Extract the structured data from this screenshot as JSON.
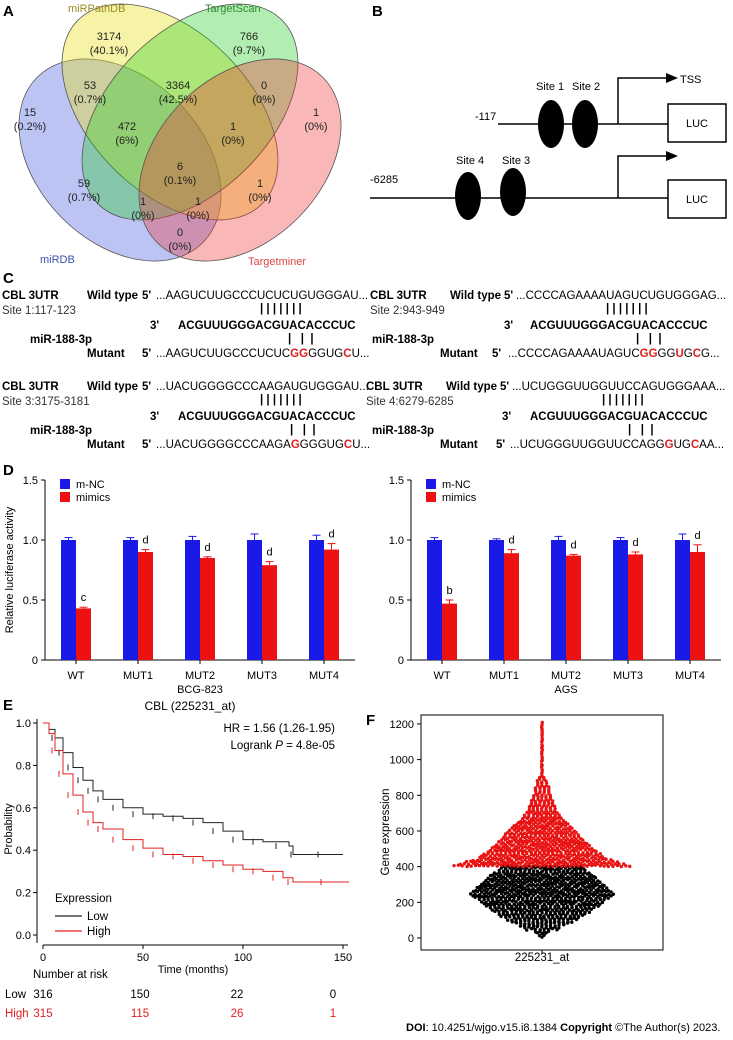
{
  "panels": {
    "A": {
      "letter": "A",
      "sets": {
        "mirpathdb": {
          "name": "miRPathDB",
          "color": "#9b8d22"
        },
        "targetscan": {
          "name": "TargetScan",
          "color": "#2e8b2e"
        },
        "mirdb": {
          "name": "miRDB",
          "color": "#3a4fb0"
        },
        "targetminer": {
          "name": "Targetminer",
          "color": "#d94545"
        }
      },
      "regions": [
        {
          "id": "p_only",
          "count": "3174",
          "pct": "(40.1%)"
        },
        {
          "id": "t_only",
          "count": "766",
          "pct": "(9.7%)"
        },
        {
          "id": "d_only",
          "count": "15",
          "pct": "(0.2%)"
        },
        {
          "id": "m_only",
          "count": "1",
          "pct": "(0%)"
        },
        {
          "id": "dp",
          "count": "53",
          "pct": "(0.7%)"
        },
        {
          "id": "pt",
          "count": "3364",
          "pct": "(42.5%)"
        },
        {
          "id": "tm",
          "count": "0",
          "pct": "(0%)"
        },
        {
          "id": "dpt",
          "count": "472",
          "pct": "(6%)"
        },
        {
          "id": "ptm",
          "count": "1",
          "pct": "(0%)"
        },
        {
          "id": "dptm",
          "count": "6",
          "pct": "(0.1%)"
        },
        {
          "id": "dt",
          "count": "59",
          "pct": "(0.7%)"
        },
        {
          "id": "pm",
          "count": "1",
          "pct": "(0%)"
        },
        {
          "id": "dtm",
          "count": "1",
          "pct": "(0%)"
        },
        {
          "id": "dpm",
          "count": "1",
          "pct": "(0%)"
        },
        {
          "id": "dm",
          "count": "0",
          "pct": "(0%)"
        }
      ]
    },
    "B": {
      "letter": "B",
      "tss": "TSS",
      "pos1": "-117",
      "pos2": "-6285",
      "site1": "Site 1",
      "site2": "Site 2",
      "site3": "Site 3",
      "site4": "Site 4",
      "luc": "LUC"
    },
    "C": {
      "letter": "C",
      "gene": "CBL 3UTR",
      "wild": "Wild type",
      "mirna": "miR-188-3p",
      "mutant": "Mutant",
      "p5": "5'",
      "p3": "3'",
      "blocks": [
        {
          "site": "Site 1:117-123",
          "wt": "...AAGUCUUGCCCUCUCUGUGGGAU...",
          "bars": "| | | | | | |",
          "mir": "ACGUUUGGGACGUACACCCUC",
          "mut_pre": "...AAGUCUUGCCCUCUC",
          "mut_seg": [
            [
              "G",
              "r"
            ],
            [
              "G",
              "r"
            ],
            [
              "G",
              "k"
            ],
            [
              "G",
              "k"
            ],
            [
              "U",
              "k"
            ],
            [
              "G",
              "k"
            ],
            [
              "C",
              "r"
            ],
            [
              "U",
              "k"
            ]
          ],
          "mut_post": "...",
          "mut_bars": "|   |  |"
        },
        {
          "site": "Site 2:943-949",
          "wt": "...CCCCAGAAAAUAGUCUGUGGGAG...",
          "bars": "| | | | | | |",
          "mir": "ACGUUUGGGACGUACACCCUC",
          "mut_pre": "...CCCCAGAAAAUAGUC",
          "mut_seg": [
            [
              "G",
              "r"
            ],
            [
              "G",
              "r"
            ],
            [
              "G",
              "k"
            ],
            [
              "G",
              "k"
            ],
            [
              "U",
              "r"
            ],
            [
              "G",
              "k"
            ],
            [
              "C",
              "r"
            ],
            [
              "G",
              "k"
            ]
          ],
          "mut_post": "...",
          "mut_bars": "|   |  |"
        },
        {
          "site": "Site 3:3175-3181",
          "wt": "...UACUGGGGCCCAAGAUGUGGGAU...",
          "bars": "| | | | | | |",
          "mir": "ACGUUUGGGACGUACACCCUC",
          "mut_pre": "...UACUGGGGCCCAAGA",
          "mut_seg": [
            [
              "G",
              "r"
            ],
            [
              "G",
              "k"
            ],
            [
              "G",
              "k"
            ],
            [
              "G",
              "k"
            ],
            [
              "U",
              "k"
            ],
            [
              "G",
              "k"
            ],
            [
              "C",
              "r"
            ],
            [
              "U",
              "k"
            ]
          ],
          "mut_post": "...",
          "mut_bars": "|   |  |"
        },
        {
          "site": "Site 4:6279-6285",
          "wt": "...UCUGGGUUGGUUCCAGUGGGAAA...",
          "bars": "| | | | | | |",
          "mir": "ACGUUUGGGACGUACACCCUC",
          "mut_pre": "...UCUGGGUUGGUUCCAG",
          "mut_seg": [
            [
              "G",
              "k"
            ],
            [
              "G",
              "r"
            ],
            [
              "U",
              "k"
            ],
            [
              "G",
              "k"
            ],
            [
              "C",
              "r"
            ],
            [
              "A",
              "k"
            ],
            [
              "A",
              "k"
            ]
          ],
          "mut_post": "...",
          "mut_bars": "|   |  |"
        }
      ]
    },
    "D": {
      "letter": "D",
      "ylabel": "Relative luciferase activity",
      "legend": {
        "nc": "m-NC",
        "mimics": "mimics"
      },
      "colors": {
        "nc": "#1a1ae6",
        "mimics": "#ee1111"
      }
    },
    "E": {
      "letter": "E",
      "title": "CBL (225231_at)",
      "hr": "HR = 1.56 (1.26-1.95)",
      "logrank_prefix": "Logrank",
      "logrank_p": "P",
      "logrank_value": "= 4.8e-05",
      "legend_title": "Expression",
      "low": "Low",
      "high": "High",
      "nar_title": "Number at risk",
      "risk_low": [
        "316",
        "150",
        "22",
        "0"
      ],
      "risk_high": [
        "315",
        "115",
        "26",
        "1"
      ],
      "colors": {
        "low": "#222222",
        "high": "#e02020"
      }
    },
    "F": {
      "letter": "F",
      "ylabel": "Gene expression",
      "xlabel": "225231_at",
      "yticks": [
        "0",
        "200",
        "400",
        "600",
        "800",
        "1000",
        "1200"
      ],
      "colors": {
        "low": "#000000",
        "high": "#e81414"
      }
    }
  },
  "chart_data": [
    {
      "type": "bar",
      "title": "BCG-823",
      "xlabel": "BCG-823",
      "ylabel": "Relative luciferase activity",
      "ylim": [
        0,
        1.5
      ],
      "yticks": [
        "0",
        "0.5",
        "1.0",
        "1.5"
      ],
      "categories": [
        "WT",
        "MUT1",
        "MUT2",
        "MUT3",
        "MUT4"
      ],
      "series": [
        {
          "name": "m-NC",
          "values": [
            1.0,
            1.0,
            1.0,
            1.0,
            1.0
          ],
          "err": [
            0.02,
            0.02,
            0.03,
            0.05,
            0.04
          ]
        },
        {
          "name": "mimics",
          "values": [
            0.43,
            0.9,
            0.85,
            0.79,
            0.92
          ],
          "err": [
            0.01,
            0.02,
            0.01,
            0.03,
            0.05
          ]
        }
      ],
      "annotations": [
        "c",
        "d",
        "d",
        "d",
        "d"
      ]
    },
    {
      "type": "bar",
      "title": "AGS",
      "xlabel": "AGS",
      "ylabel": "Relative luciferase activity",
      "ylim": [
        0,
        1.5
      ],
      "yticks": [
        "0",
        "0.5",
        "1.0",
        "1.5"
      ],
      "categories": [
        "WT",
        "MUT1",
        "MUT2",
        "MUT3",
        "MUT4"
      ],
      "series": [
        {
          "name": "m-NC",
          "values": [
            1.0,
            1.0,
            1.0,
            1.0,
            1.0
          ],
          "err": [
            0.02,
            0.01,
            0.03,
            0.02,
            0.05
          ]
        },
        {
          "name": "mimics",
          "values": [
            0.47,
            0.89,
            0.87,
            0.88,
            0.9
          ],
          "err": [
            0.03,
            0.03,
            0.01,
            0.02,
            0.06
          ]
        }
      ],
      "annotations": [
        "b",
        "d",
        "d",
        "d",
        "d"
      ]
    },
    {
      "type": "line",
      "title": "CBL (225231_at)",
      "xlabel": "Time (months)",
      "ylabel": "Probability",
      "xlim": [
        0,
        155
      ],
      "ylim": [
        0,
        1.0
      ],
      "xticks": [
        "0",
        "50",
        "100",
        "150"
      ],
      "yticks": [
        "0.0",
        "0.2",
        "0.4",
        "0.6",
        "0.8",
        "1.0"
      ],
      "series": [
        {
          "name": "Low",
          "x": [
            0,
            3,
            6,
            10,
            15,
            20,
            25,
            30,
            40,
            50,
            60,
            70,
            80,
            90,
            100,
            110,
            123,
            125,
            150
          ],
          "y": [
            1.0,
            0.97,
            0.93,
            0.86,
            0.79,
            0.73,
            0.68,
            0.64,
            0.6,
            0.57,
            0.56,
            0.55,
            0.53,
            0.49,
            0.45,
            0.44,
            0.42,
            0.38,
            0.38
          ]
        },
        {
          "name": "High",
          "x": [
            0,
            3,
            6,
            10,
            15,
            20,
            25,
            30,
            40,
            50,
            60,
            70,
            80,
            90,
            100,
            110,
            120,
            125,
            153
          ],
          "y": [
            1.0,
            0.95,
            0.87,
            0.76,
            0.66,
            0.58,
            0.53,
            0.5,
            0.45,
            0.41,
            0.38,
            0.37,
            0.35,
            0.33,
            0.31,
            0.3,
            0.27,
            0.25,
            0.25
          ]
        }
      ]
    },
    {
      "type": "scatter",
      "title": "225231_at",
      "xlabel": "225231_at",
      "ylabel": "Gene expression",
      "ylim": [
        0,
        1250
      ],
      "yticks": [
        "0",
        "200",
        "400",
        "600",
        "800",
        "1000",
        "1200"
      ],
      "series": [
        {
          "name": "Low",
          "range": [
            0,
            400
          ],
          "n": 316
        },
        {
          "name": "High",
          "range": [
            400,
            1210
          ],
          "n": 315
        }
      ]
    }
  ],
  "footer": {
    "doi_label": "DOI",
    "doi_value": ": 10.4251/wjgo.v15.i8.1384",
    "copyright_label": "Copyright",
    "copyright_value": " ©The Author(s) 2023."
  }
}
